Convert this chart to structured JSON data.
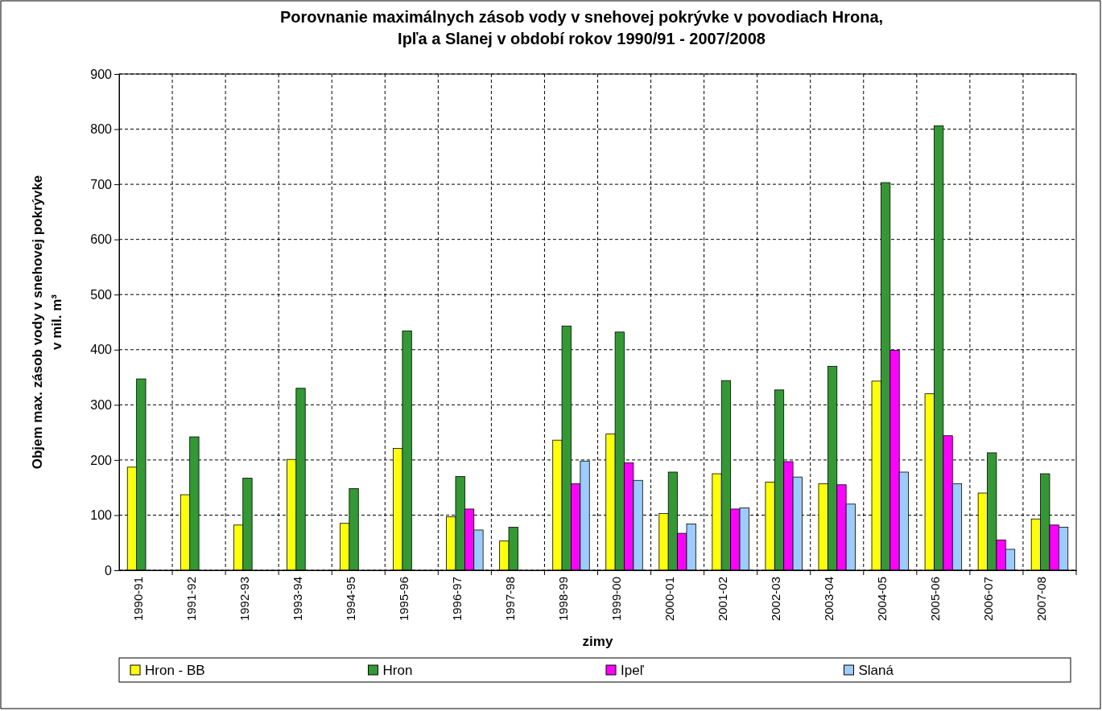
{
  "chart_data": {
    "type": "bar",
    "title": "Porovnanie maximálnych zásob vody v snehovej pokrývke v povodiach Hrona,\nIpľa a Slanej v období rokov 1990/91 - 2007/2008",
    "xlabel": "zimy",
    "ylabel": "Objem max. zásob vody v snehovej pokrývke\nv mil. m³",
    "categories": [
      "1990-91",
      "1991-92",
      "1992-93",
      "1993-94",
      "1994-95",
      "1995-96",
      "1996-97",
      "1997-98",
      "1998-99",
      "1999-00",
      "2000-01",
      "2001-02",
      "2002-03",
      "2003-04",
      "2004-05",
      "2005-06",
      "2006-07",
      "2007-08"
    ],
    "series": [
      {
        "name": "Hron - BB",
        "color": "#ffff00",
        "values": [
          187,
          137,
          82,
          201,
          85,
          221,
          97,
          53,
          236,
          247,
          103,
          175,
          160,
          157,
          343,
          320,
          140,
          93
        ]
      },
      {
        "name": "Hron",
        "color": "#339933",
        "values": [
          347,
          242,
          167,
          330,
          148,
          434,
          170,
          78,
          443,
          432,
          178,
          344,
          327,
          370,
          703,
          806,
          213,
          175
        ]
      },
      {
        "name": "Ipeľ",
        "color": "#ff00ff",
        "values": [
          null,
          null,
          null,
          null,
          null,
          null,
          111,
          null,
          157,
          195,
          67,
          111,
          197,
          155,
          399,
          244,
          55,
          82
        ]
      },
      {
        "name": "Slaná",
        "color": "#99ccff",
        "values": [
          null,
          null,
          null,
          null,
          null,
          null,
          73,
          null,
          198,
          163,
          84,
          113,
          169,
          120,
          178,
          157,
          38,
          78
        ]
      }
    ],
    "ylim": [
      0,
      900
    ],
    "yticks": [
      0,
      100,
      200,
      300,
      400,
      500,
      600,
      700,
      800,
      900
    ],
    "grid": true,
    "legend": "bottom"
  }
}
